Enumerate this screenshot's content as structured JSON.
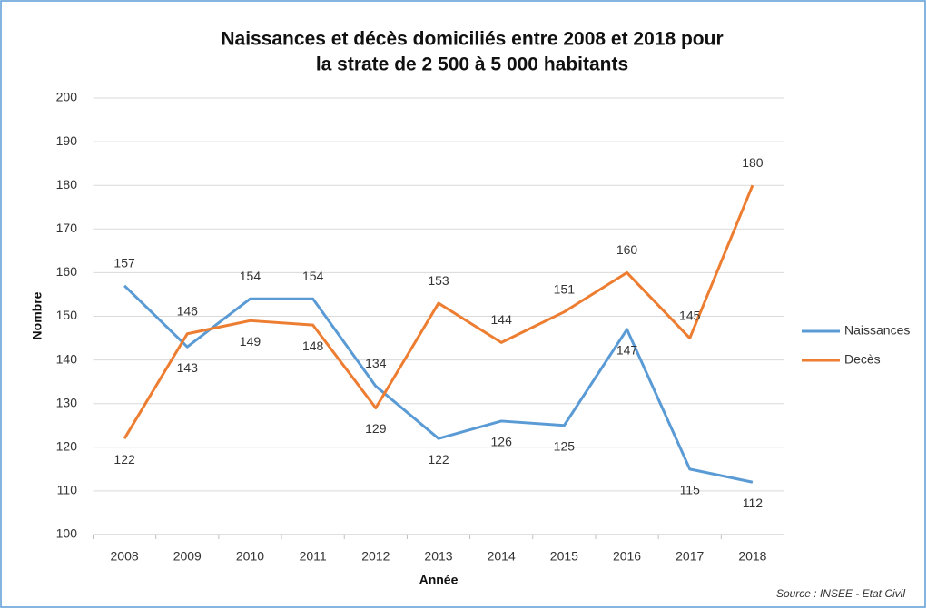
{
  "chart_data": {
    "type": "line",
    "title": [
      "Naissances et décès domiciliés entre 2008 et 2018 pour",
      "la strate de 2 500 à 5 000 habitants"
    ],
    "x_label": "Année",
    "y_label": "Nombre",
    "categories": [
      "2008",
      "2009",
      "2010",
      "2011",
      "2012",
      "2013",
      "2014",
      "2015",
      "2016",
      "2017",
      "2018"
    ],
    "series": [
      {
        "name": "Naissances",
        "color": "#5b9bd5",
        "values": [
          157,
          143,
          154,
          154,
          134,
          122,
          126,
          125,
          147,
          115,
          112
        ]
      },
      {
        "name": "Decès",
        "color": "#ed7d31",
        "values": [
          122,
          146,
          149,
          148,
          129,
          153,
          144,
          151,
          160,
          145,
          180
        ]
      }
    ],
    "ylim": [
      100,
      200
    ],
    "yticks": [
      100,
      110,
      120,
      130,
      140,
      150,
      160,
      170,
      180,
      190,
      200
    ],
    "grid": true,
    "legend": "right",
    "source": "Source : INSEE - Etat Civil"
  }
}
